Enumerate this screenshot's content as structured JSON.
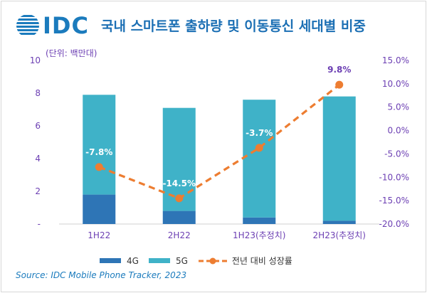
{
  "header": {
    "logo_text": "IDC",
    "title": "국내 스마트폰 출하량 및 이동통신 세대별 비중"
  },
  "unit_label": "(단위: 백만대)",
  "source": "Source: IDC Mobile Phone Tracker, 2023",
  "colors": {
    "brand": "#1b7bbd",
    "4g": "#2e75b6",
    "5g": "#3fb2c8",
    "growth": "#ed7d31",
    "axis_text": "#6c3fb3"
  },
  "chart_data": {
    "type": "bar",
    "stacked": true,
    "categories": [
      "1H22",
      "2H22",
      "1H23(추정치)",
      "2H23(추정치)"
    ],
    "series": [
      {
        "name": "4G",
        "values": [
          1.8,
          0.8,
          0.4,
          0.2
        ]
      },
      {
        "name": "5G",
        "values": [
          6.1,
          6.3,
          7.2,
          7.6
        ]
      }
    ],
    "line_series": {
      "name": "전년 대비 성장률",
      "values": [
        -7.8,
        -14.5,
        -3.7,
        9.8
      ],
      "labels": [
        "-7.8%",
        "-14.5%",
        "-3.7%",
        "9.8%"
      ]
    },
    "y_left": {
      "min": 0,
      "max": 10,
      "ticks": [
        "-",
        "2",
        "4",
        "6",
        "8",
        "10"
      ]
    },
    "y_right": {
      "min": -20,
      "max": 15,
      "ticks": [
        "-20.0%",
        "-15.0%",
        "-10.0%",
        "-5.0%",
        "0.0%",
        "5.0%",
        "10.0%",
        "15.0%"
      ]
    },
    "legend": [
      "4G",
      "5G",
      "전년 대비 성장률"
    ],
    "legend_position": "bottom"
  }
}
